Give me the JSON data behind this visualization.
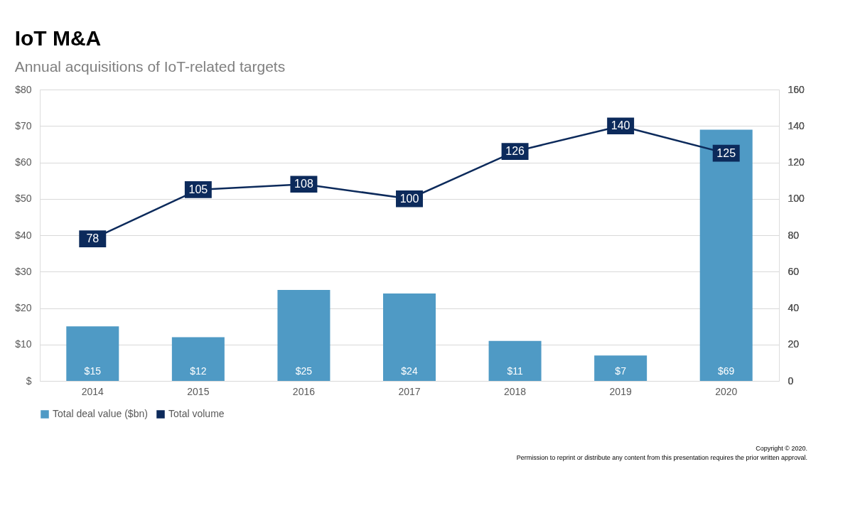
{
  "chart_data": {
    "type": "bar",
    "title": "IoT M&A",
    "subtitle": "Annual acquisitions of IoT-related targets",
    "categories": [
      "2014",
      "2015",
      "2016",
      "2017",
      "2018",
      "2019",
      "2020"
    ],
    "series": [
      {
        "name": "Total deal value ($bn)",
        "color": "#4f9ac5",
        "values": [
          15,
          12,
          25,
          24,
          11,
          7,
          69
        ],
        "value_labels": [
          "$15",
          "$12",
          "$25",
          "$24",
          "$11",
          "$7",
          "$69"
        ]
      },
      {
        "name": "Total volume",
        "type": "line",
        "axis": "y2",
        "marker": "square",
        "color": "#0c2a5b",
        "values": [
          78,
          105,
          108,
          100,
          126,
          140,
          125
        ],
        "value_labels": [
          "78",
          "105",
          "108",
          "100",
          "126",
          "140",
          "125"
        ]
      }
    ],
    "ylim": [
      0,
      80
    ],
    "yticks": [
      {
        "value": 0,
        "label": "$"
      },
      {
        "value": 10,
        "label": "$10"
      },
      {
        "value": 20,
        "label": "$20"
      },
      {
        "value": 30,
        "label": "$30"
      },
      {
        "value": 40,
        "label": "$40"
      },
      {
        "value": 50,
        "label": "$50"
      },
      {
        "value": 60,
        "label": "$60"
      },
      {
        "value": 70,
        "label": "$70"
      },
      {
        "value": 80,
        "label": "$80"
      }
    ],
    "y2lim": [
      0,
      160
    ],
    "y2ticks": [
      0,
      20,
      40,
      60,
      80,
      100,
      120,
      140,
      160
    ],
    "grid": "y",
    "legend": "bottom",
    "line_style": "solid",
    "annotations": [
      "Copyright © 2020.",
      "Permission to reprint or distribute any content from this presentation requires the prior written approval."
    ]
  }
}
